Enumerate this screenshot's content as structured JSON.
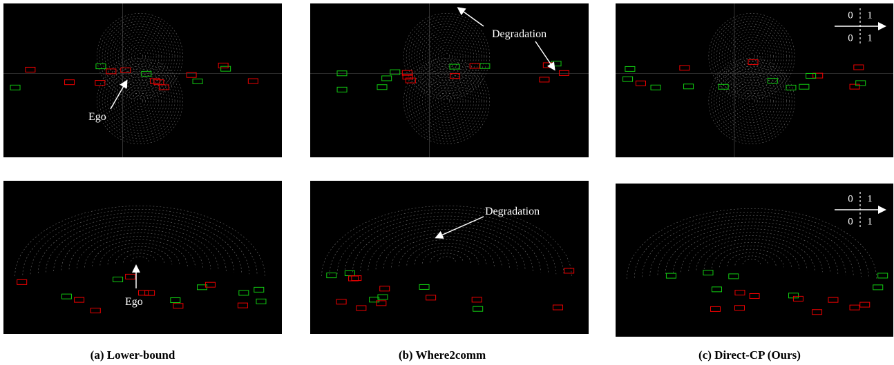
{
  "panels": [
    {
      "annotations": [
        "Ego"
      ]
    },
    {
      "annotations": [
        "Degradation"
      ]
    },
    {
      "legend": [
        0,
        1,
        0,
        1
      ]
    },
    {
      "annotations": [
        "Ego"
      ]
    },
    {
      "annotations": [
        "Degradation"
      ]
    },
    {
      "legend": [
        0,
        1,
        0,
        1
      ]
    }
  ],
  "captions": [
    "(a) Lower-bound",
    "(b) Where2comm",
    "(c) Direct-CP (Ours)"
  ]
}
